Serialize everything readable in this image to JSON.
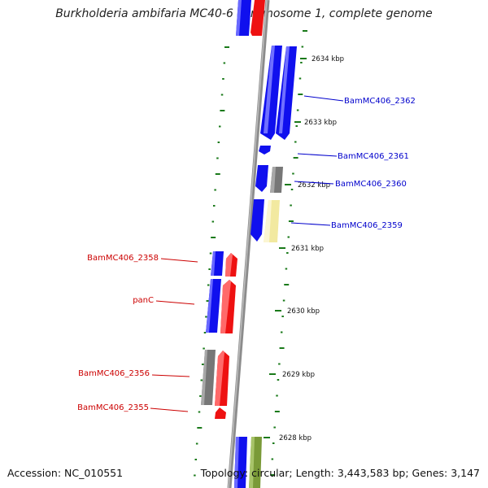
{
  "title": "Burkholderia ambifaria MC40-6 chromosome 1, complete genome",
  "accession": "Accession: NC_010551",
  "summary": "Topology: circular; Length: 3,443,583 bp; Genes: 3,147",
  "colors": {
    "backbone": "#8c8c8c",
    "forward": "#1010ee",
    "reverse": "#ee1111",
    "grey_feature": "#808080",
    "yellow_feature": "#f2e9a0",
    "olive_feature": "#7a9a38",
    "tick": "#1a7a1a",
    "label_forward": "#0000cc",
    "label_reverse": "#cc0000"
  },
  "kbp_ticks": [
    "2634 kbp",
    "2633 kbp",
    "2632 kbp",
    "2631 kbp",
    "2630 kbp",
    "2629 kbp",
    "2628 kbp"
  ],
  "gene_labels": {
    "forward": [
      "BamMC406_2362",
      "BamMC406_2361",
      "BamMC406_2360",
      "BamMC406_2359"
    ],
    "reverse": [
      "BamMC406_2358",
      "panC",
      "BamMC406_2356",
      "BamMC406_2355"
    ]
  }
}
